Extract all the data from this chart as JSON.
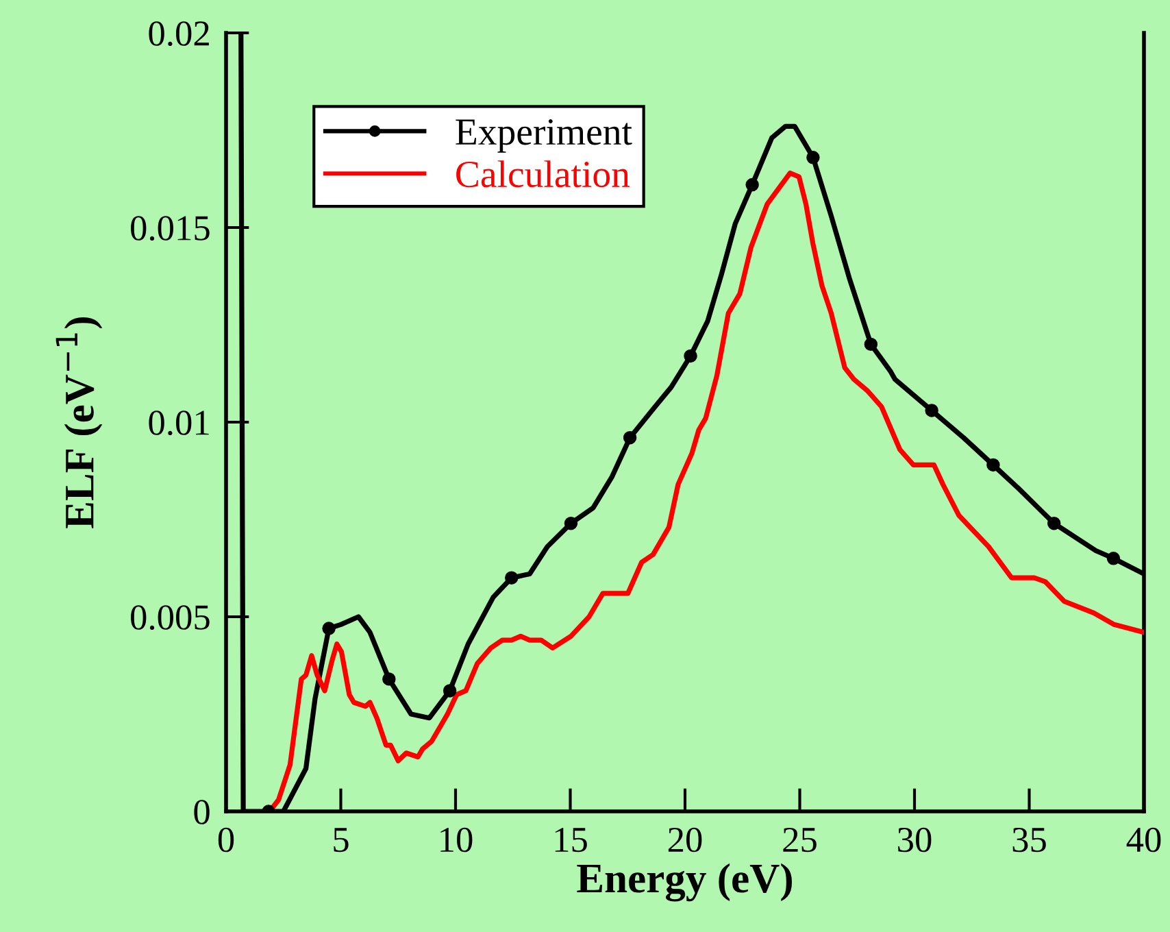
{
  "chart_data": {
    "type": "line",
    "xlabel": "Energy (eV)",
    "ylabel": "ELF (eV$^{−1}$)",
    "xlim": [
      0,
      40
    ],
    "xticks": [
      0,
      5,
      10,
      15,
      20,
      25,
      30,
      35,
      40
    ],
    "ylim": [
      0,
      0.02
    ],
    "yticks": [
      0,
      0.005,
      0.01,
      0.015,
      0.02
    ],
    "grid": false,
    "legend": "top left",
    "series": [
      {
        "name": "Experiment",
        "color": "#000000",
        "marker": "none",
        "line_style": "solid",
        "x": [
          0.65,
          0.75,
          1.85,
          2.5,
          3.48,
          3.88,
          4.48,
          5.0,
          5.77,
          6.27,
          7.1,
          8.06,
          8.86,
          9.75,
          10.55,
          11.64,
          12.44,
          13.23,
          14.0,
          15.03,
          16.0,
          16.82,
          17.6,
          18.7,
          19.4,
          20.24,
          20.99,
          21.59,
          22.19,
          22.93,
          23.78,
          24.38,
          24.78,
          25.58,
          26.37,
          27.16,
          28.1,
          28.96,
          29.15,
          30.75,
          32.14,
          33.43,
          34.53,
          36.08,
          37.9,
          38.67,
          40.0
        ],
        "values": [
          0.02,
          0.0,
          0.0,
          0.0,
          0.0011,
          0.0029,
          0.0047,
          0.0048,
          0.005,
          0.0046,
          0.0034,
          0.0025,
          0.0024,
          0.0031,
          0.0043,
          0.0055,
          0.006,
          0.0061,
          0.0068,
          0.0074,
          0.0078,
          0.0086,
          0.0096,
          0.0104,
          0.0109,
          0.0117,
          0.0126,
          0.0138,
          0.0151,
          0.0161,
          0.0173,
          0.0176,
          0.0176,
          0.0168,
          0.0153,
          0.0137,
          0.012,
          0.0113,
          0.0111,
          0.0103,
          0.0096,
          0.0089,
          0.0083,
          0.0074,
          0.0067,
          0.0065,
          0.0061
        ]
      },
      {
        "type": "scatter",
        "color": "#000000",
        "marker": "circle",
        "x": [
          1.85,
          4.48,
          7.1,
          9.75,
          12.44,
          15.03,
          17.6,
          20.24,
          22.93,
          25.58,
          28.1,
          30.75,
          33.43,
          36.08,
          38.67
        ],
        "values": [
          0.0,
          0.0047,
          0.0034,
          0.0031,
          0.006,
          0.0074,
          0.0096,
          0.0117,
          0.0161,
          0.0168,
          0.012,
          0.0103,
          0.0089,
          0.0074,
          0.0065
        ]
      },
      {
        "name": "Calculation",
        "color": "#ff0000",
        "marker": "none",
        "line_style": "solid",
        "x": [
          1.9,
          2.29,
          2.79,
          3.28,
          3.48,
          3.73,
          3.97,
          4.3,
          4.63,
          4.83,
          5.03,
          5.37,
          5.57,
          6.07,
          6.27,
          6.57,
          6.97,
          7.17,
          7.5,
          7.85,
          8.36,
          8.56,
          8.96,
          9.65,
          10.05,
          10.45,
          10.95,
          11.54,
          12.04,
          12.44,
          12.84,
          13.23,
          13.73,
          14.23,
          15.03,
          15.82,
          16.42,
          16.92,
          17.51,
          18.11,
          18.61,
          19.3,
          19.7,
          20.3,
          20.6,
          20.9,
          21.39,
          21.89,
          22.39,
          22.88,
          23.58,
          24.08,
          24.58,
          24.97,
          25.27,
          25.57,
          25.97,
          26.37,
          26.96,
          27.36,
          27.96,
          28.56,
          29.36,
          29.95,
          30.85,
          31.24,
          31.94,
          33.23,
          34.23,
          35.22,
          35.7,
          36.52,
          37.81,
          38.7,
          40.0
        ],
        "values": [
          0.0,
          0.0003,
          0.0012,
          0.0034,
          0.0035,
          0.004,
          0.0035,
          0.0031,
          0.0039,
          0.0043,
          0.0041,
          0.003,
          0.0028,
          0.0027,
          0.0028,
          0.0024,
          0.0017,
          0.0017,
          0.0013,
          0.0015,
          0.0014,
          0.0016,
          0.0018,
          0.0025,
          0.003,
          0.0031,
          0.0038,
          0.0042,
          0.0044,
          0.0044,
          0.0045,
          0.0044,
          0.0044,
          0.0042,
          0.0045,
          0.005,
          0.0056,
          0.0056,
          0.0056,
          0.0064,
          0.0066,
          0.0073,
          0.0084,
          0.0092,
          0.0098,
          0.0101,
          0.0112,
          0.0128,
          0.0133,
          0.0145,
          0.0156,
          0.016,
          0.0164,
          0.0163,
          0.0156,
          0.0146,
          0.0135,
          0.0128,
          0.0114,
          0.0111,
          0.0108,
          0.0104,
          0.0093,
          0.0089,
          0.0089,
          0.0084,
          0.0076,
          0.0068,
          0.006,
          0.006,
          0.0059,
          0.0054,
          0.0051,
          0.0048,
          0.0046
        ]
      }
    ]
  }
}
